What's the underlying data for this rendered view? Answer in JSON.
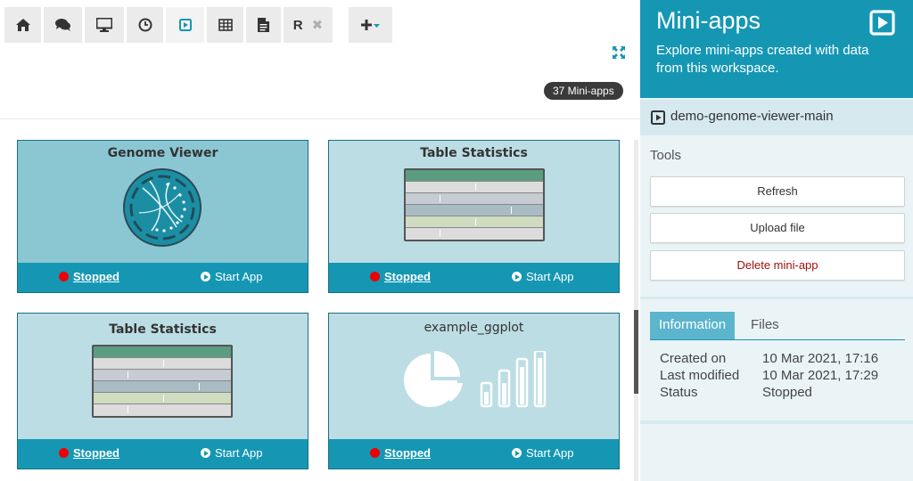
{
  "tabs": [
    {
      "icon": "home-icon"
    },
    {
      "icon": "chat-icon"
    },
    {
      "icon": "monitor-icon"
    },
    {
      "icon": "clock-icon"
    },
    {
      "icon": "play-square-icon",
      "active": true
    },
    {
      "icon": "table-icon"
    },
    {
      "icon": "document-icon"
    },
    {
      "label": "R",
      "close": "✖"
    },
    {
      "icon": "add-dropdown-icon"
    }
  ],
  "colors": {
    "accent": "#1597b4",
    "status_stopped": "#ee0000",
    "danger_text": "#a01010"
  },
  "count_badge": "37 Mini-apps",
  "cards": [
    {
      "title": "Genome Viewer",
      "status": "Stopped",
      "action": "Start App",
      "thumbnail": "genome-circle-icon"
    },
    {
      "title": "Table Statistics",
      "status": "Stopped",
      "action": "Start App",
      "thumbnail": "table-thumbnail"
    },
    {
      "title": "Table Statistics",
      "status": "Stopped",
      "action": "Start App",
      "thumbnail": "table-thumbnail"
    },
    {
      "title": "example_ggplot",
      "status": "Stopped",
      "action": "Start App",
      "thumbnail": "pie-bar-icon"
    }
  ],
  "panel": {
    "title": "Mini-apps",
    "description": "Explore mini-apps created with data from this workspace.",
    "selected_app": "demo-genome-viewer-main",
    "tools_label": "Tools",
    "buttons": {
      "refresh": "Refresh",
      "upload": "Upload file",
      "delete": "Delete mini-app"
    },
    "info_tabs": [
      "Information",
      "Files"
    ],
    "info": [
      {
        "key": "Created on",
        "value": "10 Mar 2021, 17:16"
      },
      {
        "key": "Last modified",
        "value": "10 Mar 2021, 17:29"
      },
      {
        "key": "Status",
        "value": "Stopped"
      }
    ]
  }
}
